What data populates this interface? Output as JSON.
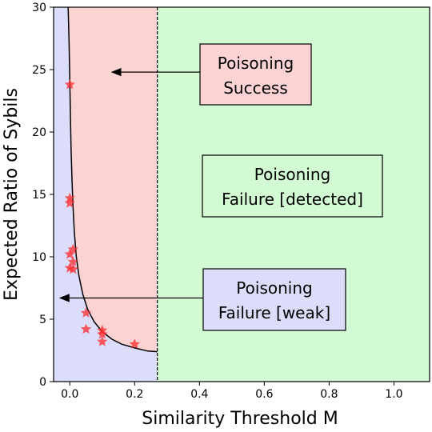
{
  "chart_data": {
    "type": "scatter",
    "title": "",
    "xlabel": "Similarity Threshold M",
    "ylabel": "Expected Ratio of Sybils",
    "xlim": [
      -0.05,
      1.11
    ],
    "ylim": [
      0,
      30
    ],
    "xticks": [
      0.0,
      0.2,
      0.4,
      0.6,
      0.8,
      1.0
    ],
    "xtick_labels": [
      "0.0",
      "0.2",
      "0.4",
      "0.6",
      "0.8",
      "1.0"
    ],
    "yticks": [
      0,
      5,
      10,
      15,
      20,
      25,
      30
    ],
    "ytick_labels": [
      "0",
      "5",
      "10",
      "15",
      "20",
      "25",
      "30"
    ],
    "grid": false,
    "threshold_line_x": 0.27,
    "boundary_curve": {
      "description_in_chart": "",
      "points": [
        [
          -0.005,
          30
        ],
        [
          -0.002,
          27
        ],
        [
          0.0,
          24
        ],
        [
          0.002,
          21
        ],
        [
          0.004,
          18.5
        ],
        [
          0.007,
          16
        ],
        [
          0.01,
          14
        ],
        [
          0.014,
          12
        ],
        [
          0.02,
          10
        ],
        [
          0.028,
          8.5
        ],
        [
          0.04,
          7
        ],
        [
          0.055,
          5.8
        ],
        [
          0.075,
          4.8
        ],
        [
          0.1,
          4.0
        ],
        [
          0.13,
          3.4
        ],
        [
          0.16,
          3.0
        ],
        [
          0.2,
          2.7
        ],
        [
          0.24,
          2.45
        ],
        [
          0.27,
          2.4
        ]
      ]
    },
    "series": [
      {
        "marker": "star",
        "color": "#ff2a2a",
        "points": [
          [
            0.0,
            23.8
          ],
          [
            0.0,
            14.7
          ],
          [
            0.0,
            14.3
          ],
          [
            0.0,
            10.2
          ],
          [
            0.0,
            9.1
          ],
          [
            0.01,
            10.6
          ],
          [
            0.01,
            9.6
          ],
          [
            0.01,
            9.0
          ],
          [
            0.05,
            5.5
          ],
          [
            0.05,
            4.2
          ],
          [
            0.1,
            4.1
          ],
          [
            0.1,
            3.8
          ],
          [
            0.1,
            3.2
          ],
          [
            0.2,
            3.0
          ]
        ]
      }
    ],
    "regions": {
      "success_color": "#fcd3d3",
      "weak_color": "#dcdcfb",
      "detected_color": "#d3fbd3"
    },
    "annotations": [
      {
        "lines": [
          "Poisoning",
          "Success"
        ],
        "bg": "#fcd3d3",
        "arrow_to": [
          0.13,
          24.8
        ]
      },
      {
        "lines": [
          "Poisoning",
          "Failure [detected]"
        ],
        "bg": "#d3fbd3"
      },
      {
        "lines": [
          "Poisoning",
          "Failure [weak]"
        ],
        "bg": "#dcdcfb",
        "arrow_to": [
          -0.03,
          6.7
        ]
      }
    ]
  }
}
